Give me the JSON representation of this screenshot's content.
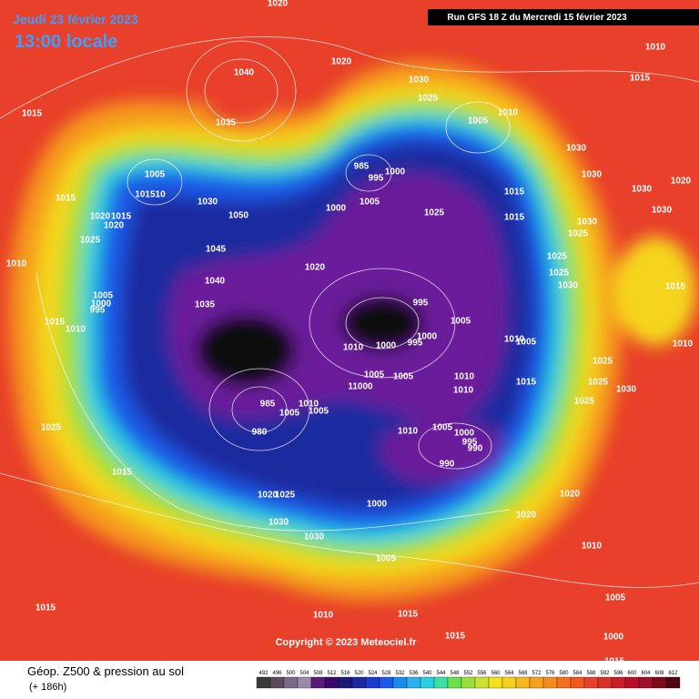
{
  "header": {
    "date": "Jeudi 23 février 2023",
    "time": "13:00 locale",
    "run": "Run GFS 18 Z du Mercredi 15 février 2023",
    "copyright": "Copyright © 2023 Meteociel.fr"
  },
  "footer": {
    "title": "Géop. Z500 & pression au sol",
    "lead": "(+ 186h)",
    "scale": [
      "492",
      "496",
      "500",
      "504",
      "508",
      "512",
      "516",
      "520",
      "524",
      "528",
      "532",
      "536",
      "540",
      "544",
      "548",
      "552",
      "556",
      "560",
      "564",
      "568",
      "572",
      "576",
      "580",
      "584",
      "588",
      "592",
      "596",
      "600",
      "604",
      "608",
      "612"
    ]
  },
  "isobar_labels": [
    "1020",
    "1040",
    "1020",
    "1030",
    "1025",
    "1010",
    "1015",
    "1015",
    "1035",
    "1005",
    "1010",
    "1005",
    "101510",
    "985",
    "1000",
    "995",
    "1030",
    "1030",
    "1030",
    "1020",
    "1015",
    "1030",
    "1050",
    "1000",
    "1005",
    "1025",
    "1015",
    "1015",
    "1020",
    "1015",
    "1020",
    "1025",
    "1045",
    "1030",
    "1025",
    "1030",
    "1010",
    "1040",
    "1020",
    "1025",
    "1025",
    "1005",
    "1000",
    "995",
    "1035",
    "995",
    "1030",
    "1015",
    "1015",
    "1010",
    "1005",
    "1000",
    "1010",
    "1000",
    "995",
    "1010",
    "1005",
    "1010",
    "1025",
    "1005",
    "1005",
    "1010",
    "1015",
    "1025",
    "1030",
    "11000",
    "1010",
    "1025",
    "1010",
    "1005",
    "1005",
    "985",
    "980",
    "1025",
    "1010",
    "1005",
    "1000",
    "995",
    "990",
    "990",
    "1015",
    "1025",
    "1020",
    "1020",
    "1000",
    "1020",
    "1030",
    "1030",
    "1010",
    "1005",
    "1005",
    "1015",
    "1010",
    "1015",
    "1000",
    "1015",
    "1015"
  ]
}
